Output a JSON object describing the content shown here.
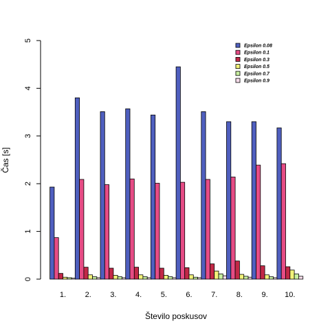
{
  "chart_data": {
    "type": "bar",
    "title": "",
    "xlabel": "Število poskusov",
    "ylabel": "Čas [s]",
    "ylim": [
      0,
      5
    ],
    "yticks": [
      "0",
      "1",
      "2",
      "3",
      "4",
      "5"
    ],
    "categories": [
      "1.",
      "2.",
      "3.",
      "4.",
      "5.",
      "6.",
      "7.",
      "8.",
      "9.",
      "10."
    ],
    "grid": false,
    "legend_position": "top-right",
    "series": [
      {
        "name": "Epsilon 0.08",
        "color": "#4f5fbf",
        "values": [
          1.93,
          3.8,
          3.51,
          3.57,
          3.44,
          4.45,
          3.51,
          3.3,
          3.3,
          3.17
        ]
      },
      {
        "name": "Epsilon 0.1",
        "color": "#e64c85",
        "values": [
          0.87,
          2.09,
          1.98,
          2.1,
          2.01,
          2.03,
          2.09,
          2.14,
          2.39,
          2.42
        ]
      },
      {
        "name": "Epsilon 0.3",
        "color": "#c22847",
        "values": [
          0.12,
          0.25,
          0.23,
          0.25,
          0.23,
          0.24,
          0.32,
          0.38,
          0.28,
          0.26
        ]
      },
      {
        "name": "Epsilon 0.5",
        "color": "#f2f27a",
        "values": [
          0.04,
          0.09,
          0.08,
          0.09,
          0.08,
          0.09,
          0.17,
          0.1,
          0.09,
          0.19
        ]
      },
      {
        "name": "Epsilon 0.7",
        "color": "#c8efa0",
        "values": [
          0.03,
          0.05,
          0.05,
          0.05,
          0.05,
          0.04,
          0.11,
          0.06,
          0.05,
          0.11
        ]
      },
      {
        "name": "Epsilon 0.9",
        "color": "#f6dcea",
        "values": [
          0.02,
          0.03,
          0.03,
          0.03,
          0.03,
          0.03,
          0.07,
          0.04,
          0.03,
          0.06
        ]
      }
    ]
  }
}
